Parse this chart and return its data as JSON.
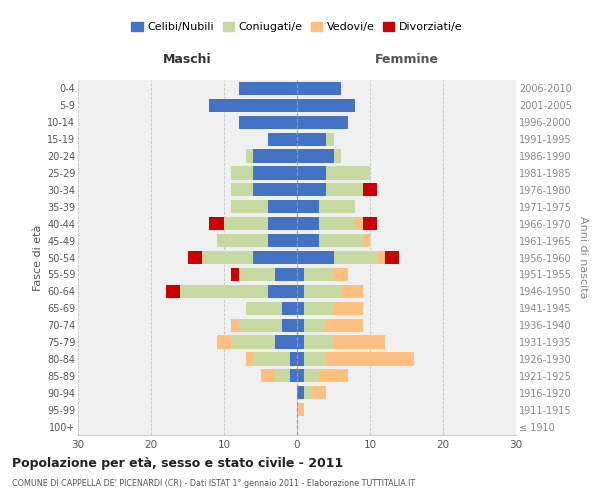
{
  "age_groups": [
    "100+",
    "95-99",
    "90-94",
    "85-89",
    "80-84",
    "75-79",
    "70-74",
    "65-69",
    "60-64",
    "55-59",
    "50-54",
    "45-49",
    "40-44",
    "35-39",
    "30-34",
    "25-29",
    "20-24",
    "15-19",
    "10-14",
    "5-9",
    "0-4"
  ],
  "year_labels": [
    "≤ 1910",
    "1911-1915",
    "1916-1920",
    "1921-1925",
    "1926-1930",
    "1931-1935",
    "1936-1940",
    "1941-1945",
    "1946-1950",
    "1951-1955",
    "1956-1960",
    "1961-1965",
    "1966-1970",
    "1971-1975",
    "1976-1980",
    "1981-1985",
    "1986-1990",
    "1991-1995",
    "1996-2000",
    "2001-2005",
    "2006-2010"
  ],
  "male": {
    "celibi": [
      0,
      0,
      0,
      1,
      1,
      3,
      2,
      2,
      4,
      3,
      6,
      4,
      4,
      4,
      6,
      6,
      6,
      4,
      8,
      12,
      8
    ],
    "coniugati": [
      0,
      0,
      0,
      2,
      5,
      6,
      6,
      5,
      12,
      5,
      7,
      7,
      6,
      5,
      3,
      3,
      1,
      0,
      0,
      0,
      0
    ],
    "vedovi": [
      0,
      0,
      0,
      2,
      1,
      2,
      1,
      0,
      0,
      0,
      0,
      0,
      0,
      0,
      0,
      0,
      0,
      0,
      0,
      0,
      0
    ],
    "divorziati": [
      0,
      0,
      0,
      0,
      0,
      0,
      0,
      0,
      2,
      1,
      2,
      0,
      2,
      0,
      0,
      0,
      0,
      0,
      0,
      0,
      0
    ]
  },
  "female": {
    "nubili": [
      0,
      0,
      1,
      1,
      1,
      1,
      1,
      1,
      1,
      1,
      5,
      3,
      3,
      3,
      4,
      4,
      5,
      4,
      7,
      8,
      6
    ],
    "coniugate": [
      0,
      0,
      1,
      2,
      3,
      4,
      3,
      4,
      5,
      4,
      6,
      6,
      5,
      5,
      5,
      6,
      1,
      1,
      0,
      0,
      0
    ],
    "vedove": [
      0,
      1,
      2,
      4,
      12,
      7,
      5,
      4,
      3,
      2,
      1,
      1,
      1,
      0,
      0,
      0,
      0,
      0,
      0,
      0,
      0
    ],
    "divorziate": [
      0,
      0,
      0,
      0,
      0,
      0,
      0,
      0,
      0,
      0,
      2,
      0,
      2,
      0,
      2,
      0,
      0,
      0,
      0,
      0,
      0
    ]
  },
  "colors": {
    "celibi": "#4472c4",
    "coniugati": "#c5d9a0",
    "vedovi": "#ffc07f",
    "divorziati": "#cc0000"
  },
  "xlim": 30,
  "title": "Popolazione per età, sesso e stato civile - 2011",
  "subtitle": "COMUNE DI CAPPELLA DE' PICENARDI (CR) - Dati ISTAT 1° gennaio 2011 - Elaborazione TUTTITALIA.IT",
  "legend_labels": [
    "Celibi/Nubili",
    "Coniugati/e",
    "Vedovi/e",
    "Divorziati/e"
  ],
  "xlabel_left": "Maschi",
  "xlabel_right": "Femmine",
  "ylabel_left": "Fasce di età",
  "ylabel_right": "Anni di nascita",
  "bg_color": "#ffffff",
  "plot_bg_color": "#f0f0f0"
}
